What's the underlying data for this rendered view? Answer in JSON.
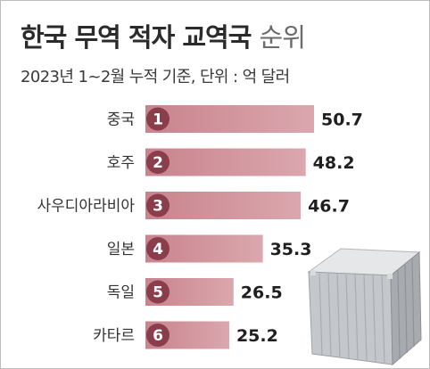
{
  "header": {
    "title_bold": "한국 무역 적자 교역국",
    "title_light": "순위",
    "subtitle": "2023년 1~2월 누적 기준, 단위 : 억 달러"
  },
  "colors": {
    "bar": "#c9838d",
    "bar_light": "#dba7ae",
    "badge": "#8a3e4c",
    "text": "#2b2b2b"
  },
  "chart_data": {
    "type": "bar",
    "orientation": "horizontal",
    "categories": [
      "중국",
      "호주",
      "사우디아라비아",
      "일본",
      "독일",
      "카타르"
    ],
    "ranks": [
      "1",
      "2",
      "3",
      "4",
      "5",
      "6"
    ],
    "values": [
      50.7,
      48.2,
      46.7,
      35.3,
      26.5,
      25.2
    ],
    "value_labels": [
      "50.7",
      "48.2",
      "46.7",
      "35.3",
      "26.5",
      "25.2"
    ],
    "xlim": [
      0,
      50.7
    ],
    "grid": false,
    "legend": "none"
  },
  "decor": {
    "illustration_icon": "shipping-container-icon"
  }
}
